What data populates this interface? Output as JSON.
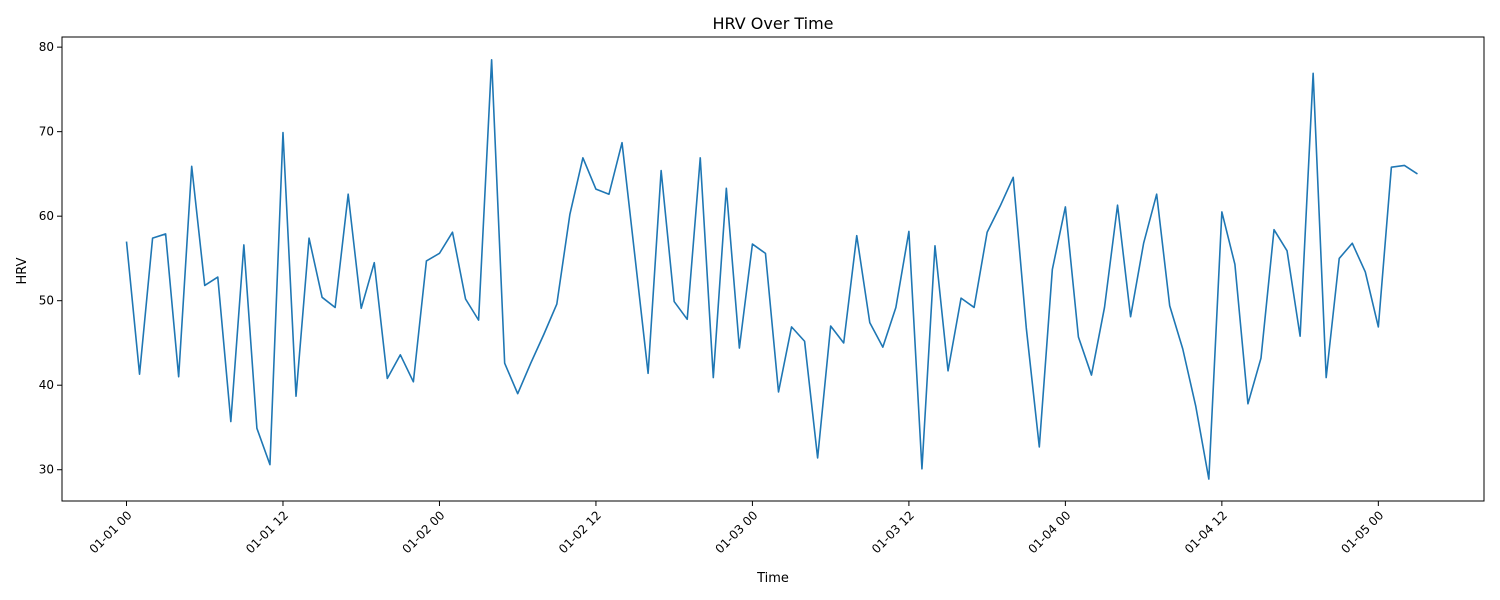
{
  "chart_data": {
    "type": "line",
    "title": "HRV Over Time",
    "xlabel": "Time",
    "ylabel": "HRV",
    "grid": false,
    "legend": "none",
    "x_tick_labels": [
      "01-01 00",
      "01-01 12",
      "01-02 00",
      "01-02 12",
      "01-03 00",
      "01-03 12",
      "01-04 00",
      "01-04 12",
      "01-05 00"
    ],
    "y_tick_labels": [
      "30",
      "40",
      "50",
      "60",
      "70",
      "80"
    ],
    "y_ticks": [
      30,
      40,
      50,
      60,
      70,
      80
    ],
    "ylim": [
      26.3,
      81.2
    ],
    "xlim": [
      "2024-01-01 00:00",
      "2024-01-05 03:00"
    ],
    "series": [
      {
        "color": "#1f77b4",
        "x": [
          "2024-01-01 00:00",
          "2024-01-01 01:00",
          "2024-01-01 02:00",
          "2024-01-01 03:00",
          "2024-01-01 04:00",
          "2024-01-01 05:00",
          "2024-01-01 06:00",
          "2024-01-01 07:00",
          "2024-01-01 08:00",
          "2024-01-01 09:00",
          "2024-01-01 10:00",
          "2024-01-01 11:00",
          "2024-01-01 12:00",
          "2024-01-01 13:00",
          "2024-01-01 14:00",
          "2024-01-01 15:00",
          "2024-01-01 16:00",
          "2024-01-01 17:00",
          "2024-01-01 18:00",
          "2024-01-01 19:00",
          "2024-01-01 20:00",
          "2024-01-01 21:00",
          "2024-01-01 22:00",
          "2024-01-01 23:00",
          "2024-01-02 00:00",
          "2024-01-02 01:00",
          "2024-01-02 02:00",
          "2024-01-02 03:00",
          "2024-01-02 04:00",
          "2024-01-02 05:00",
          "2024-01-02 06:00",
          "2024-01-02 07:00",
          "2024-01-02 08:00",
          "2024-01-02 09:00",
          "2024-01-02 10:00",
          "2024-01-02 11:00",
          "2024-01-02 12:00",
          "2024-01-02 13:00",
          "2024-01-02 14:00",
          "2024-01-02 15:00",
          "2024-01-02 16:00",
          "2024-01-02 17:00",
          "2024-01-02 18:00",
          "2024-01-02 19:00",
          "2024-01-02 20:00",
          "2024-01-02 21:00",
          "2024-01-02 22:00",
          "2024-01-02 23:00",
          "2024-01-03 00:00",
          "2024-01-03 01:00",
          "2024-01-03 02:00",
          "2024-01-03 03:00",
          "2024-01-03 04:00",
          "2024-01-03 05:00",
          "2024-01-03 06:00",
          "2024-01-03 07:00",
          "2024-01-03 08:00",
          "2024-01-03 09:00",
          "2024-01-03 10:00",
          "2024-01-03 11:00",
          "2024-01-03 12:00",
          "2024-01-03 13:00",
          "2024-01-03 14:00",
          "2024-01-03 15:00",
          "2024-01-03 16:00",
          "2024-01-03 17:00",
          "2024-01-03 18:00",
          "2024-01-03 19:00",
          "2024-01-03 20:00",
          "2024-01-03 21:00",
          "2024-01-03 22:00",
          "2024-01-03 23:00",
          "2024-01-04 00:00",
          "2024-01-04 01:00",
          "2024-01-04 02:00",
          "2024-01-04 03:00",
          "2024-01-04 04:00",
          "2024-01-04 05:00",
          "2024-01-04 06:00",
          "2024-01-04 07:00",
          "2024-01-04 08:00",
          "2024-01-04 09:00",
          "2024-01-04 10:00",
          "2024-01-04 11:00",
          "2024-01-04 12:00",
          "2024-01-04 13:00",
          "2024-01-04 14:00",
          "2024-01-04 15:00",
          "2024-01-04 16:00",
          "2024-01-04 17:00",
          "2024-01-04 18:00",
          "2024-01-04 19:00",
          "2024-01-04 20:00",
          "2024-01-04 21:00",
          "2024-01-04 22:00",
          "2024-01-04 23:00",
          "2024-01-05 00:00",
          "2024-01-05 01:00",
          "2024-01-05 02:00",
          "2024-01-05 03:00"
        ],
        "values": [
          57.0,
          41.3,
          57.4,
          57.9,
          41.0,
          65.9,
          51.8,
          52.8,
          35.7,
          56.6,
          34.9,
          30.6,
          69.9,
          38.7,
          57.4,
          50.4,
          49.2,
          62.6,
          49.1,
          54.5,
          40.8,
          43.6,
          40.4,
          54.7,
          55.6,
          58.1,
          50.2,
          47.7,
          78.5,
          42.6,
          39.0,
          42.6,
          46.0,
          49.6,
          60.2,
          66.9,
          63.2,
          62.6,
          68.7,
          55.1,
          41.4,
          65.4,
          49.9,
          47.8,
          66.9,
          40.9,
          63.3,
          44.4,
          56.7,
          55.6,
          39.2,
          46.9,
          45.2,
          31.4,
          47.0,
          45.0,
          57.7,
          47.4,
          44.5,
          49.2,
          58.2,
          30.1,
          56.5,
          41.7,
          50.3,
          49.2,
          58.1,
          61.2,
          64.6,
          46.8,
          32.7,
          53.7,
          61.1,
          45.7,
          41.2,
          49.2,
          61.3,
          48.1,
          56.8,
          62.6,
          49.4,
          44.3,
          37.5,
          28.9,
          60.5,
          54.3,
          37.8,
          43.2,
          58.4,
          55.9,
          45.8,
          76.9,
          40.9,
          55.0,
          56.8,
          53.4,
          46.9,
          65.8,
          66.0,
          65.0
        ]
      }
    ]
  }
}
